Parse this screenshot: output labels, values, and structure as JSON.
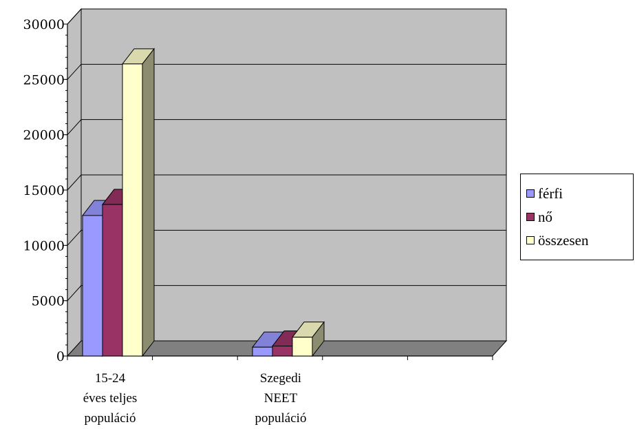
{
  "chart_data": {
    "type": "bar",
    "style": "3d-clustered-column",
    "categories": [
      [
        "15-24",
        "éves teljes",
        "populáció"
      ],
      [
        "Szegedi",
        "NEET",
        "populáció"
      ],
      [
        "",
        "",
        ""
      ]
    ],
    "series": [
      {
        "name": "férfi",
        "color": "#9999ff",
        "values": [
          12700,
          800,
          null
        ]
      },
      {
        "name": "nő",
        "color": "#993366",
        "values": [
          13700,
          900,
          null
        ]
      },
      {
        "name": "összesen",
        "color": "#ffffcc",
        "values": [
          26400,
          1700,
          null
        ]
      }
    ],
    "y_ticks": [
      "0",
      "5000",
      "10000",
      "15000",
      "20000",
      "25000",
      "30000"
    ],
    "ylim": [
      0,
      30000
    ],
    "grid": true,
    "legend_position": "right",
    "colors": {
      "wall": "#c0c0c0",
      "floor": "#808080",
      "gridline": "#000000"
    }
  }
}
